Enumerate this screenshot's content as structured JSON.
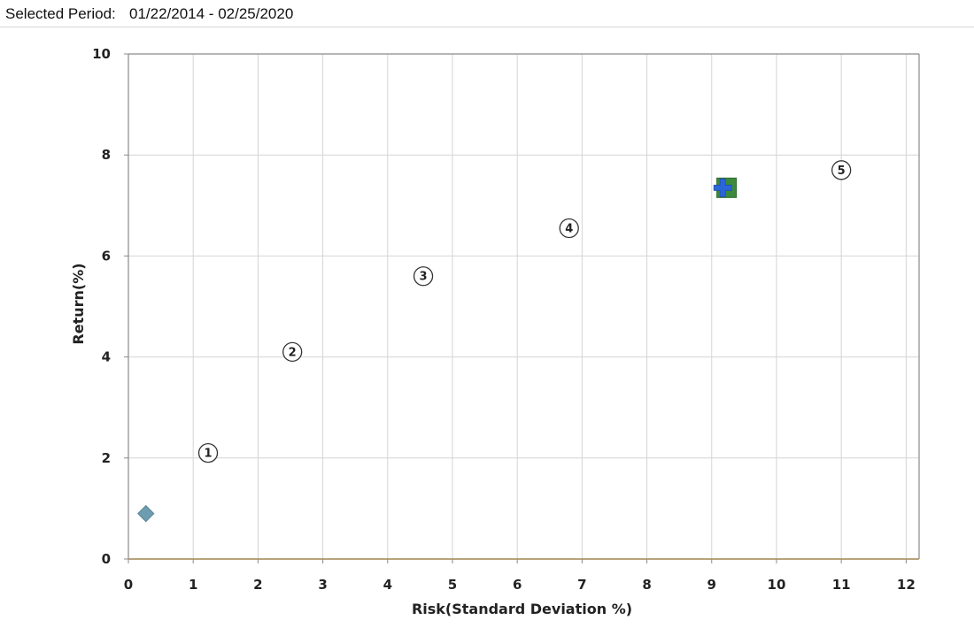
{
  "header": {
    "period_label": "Selected Period:",
    "period_value": "01/22/2014 - 02/25/2020"
  },
  "chart_data": {
    "type": "scatter",
    "xlabel": "Risk(Standard Deviation %)",
    "ylabel": "Return(%)",
    "xlim": [
      0,
      12.2
    ],
    "ylim": [
      0,
      10
    ],
    "x_ticks": [
      0,
      1,
      2,
      3,
      4,
      5,
      6,
      7,
      8,
      9,
      10,
      11,
      12
    ],
    "y_ticks": [
      0,
      2,
      4,
      6,
      8,
      10
    ],
    "grid": true,
    "points": [
      {
        "label": "1",
        "x": 1.23,
        "y": 2.1,
        "marker": "circle-number"
      },
      {
        "label": "2",
        "x": 2.53,
        "y": 4.1,
        "marker": "circle-number"
      },
      {
        "label": "3",
        "x": 4.55,
        "y": 5.6,
        "marker": "circle-number"
      },
      {
        "label": "4",
        "x": 6.8,
        "y": 6.55,
        "marker": "circle-number"
      },
      {
        "label": "5",
        "x": 11.0,
        "y": 7.7,
        "marker": "circle-number"
      },
      {
        "label": "",
        "x": 0.27,
        "y": 0.9,
        "marker": "diamond",
        "color": "#6f9db0"
      },
      {
        "label": "",
        "x": 9.23,
        "y": 7.35,
        "marker": "square",
        "color": "#3c8a3c"
      },
      {
        "label": "",
        "x": 9.17,
        "y": 7.35,
        "marker": "cross",
        "color": "#2b66d9"
      }
    ],
    "colors": {
      "grid": "#d4d4d4",
      "frame": "#8a8a8a",
      "x_axis": "#b8a37a"
    }
  }
}
